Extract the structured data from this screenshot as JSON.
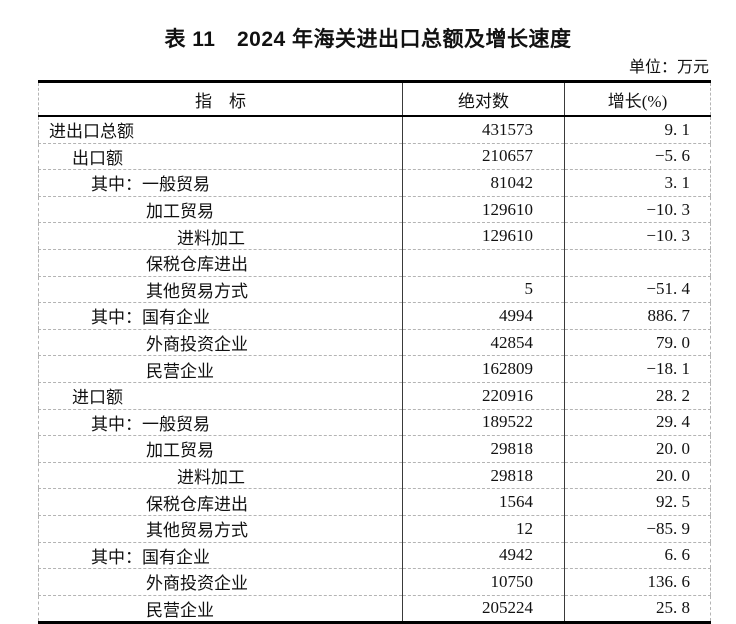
{
  "title": "表 11　2024 年海关进出口总额及增长速度",
  "unit_label": "单位：万元",
  "table": {
    "columns": [
      "指　标",
      "绝对数",
      "增长(%)"
    ],
    "rows": [
      {
        "label": "进出口总额",
        "indent": 0,
        "absolute": "431573",
        "growth": "9. 1"
      },
      {
        "label": "出口额",
        "indent": 1,
        "absolute": "210657",
        "growth": "−5. 6"
      },
      {
        "label": "其中：一般贸易",
        "indent": 2,
        "absolute": "81042",
        "growth": "3. 1"
      },
      {
        "label": "加工贸易",
        "indent": 3,
        "absolute": "129610",
        "growth": "−10. 3"
      },
      {
        "label": "进料加工",
        "indent": 4,
        "absolute": "129610",
        "growth": "−10. 3"
      },
      {
        "label": "保税仓库进出",
        "indent": 3,
        "absolute": "",
        "growth": ""
      },
      {
        "label": "其他贸易方式",
        "indent": 3,
        "absolute": "5",
        "growth": "−51. 4"
      },
      {
        "label": "其中：国有企业",
        "indent": 2,
        "absolute": "4994",
        "growth": "886. 7"
      },
      {
        "label": "外商投资企业",
        "indent": 3,
        "absolute": "42854",
        "growth": "79. 0"
      },
      {
        "label": "民营企业",
        "indent": 3,
        "absolute": "162809",
        "growth": "−18. 1"
      },
      {
        "label": "进口额",
        "indent": 1,
        "absolute": "220916",
        "growth": "28. 2"
      },
      {
        "label": "其中：一般贸易",
        "indent": 2,
        "absolute": "189522",
        "growth": "29. 4"
      },
      {
        "label": "加工贸易",
        "indent": 3,
        "absolute": "29818",
        "growth": "20. 0"
      },
      {
        "label": "进料加工",
        "indent": 4,
        "absolute": "29818",
        "growth": "20. 0"
      },
      {
        "label": "保税仓库进出",
        "indent": 3,
        "absolute": "1564",
        "growth": "92. 5"
      },
      {
        "label": "其他贸易方式",
        "indent": 3,
        "absolute": "12",
        "growth": "−85. 9"
      },
      {
        "label": "其中：国有企业",
        "indent": 2,
        "absolute": "4942",
        "growth": "6. 6"
      },
      {
        "label": "外商投资企业",
        "indent": 3,
        "absolute": "10750",
        "growth": "136. 6"
      },
      {
        "label": "民营企业",
        "indent": 3,
        "absolute": "205224",
        "growth": "25. 8"
      }
    ]
  }
}
